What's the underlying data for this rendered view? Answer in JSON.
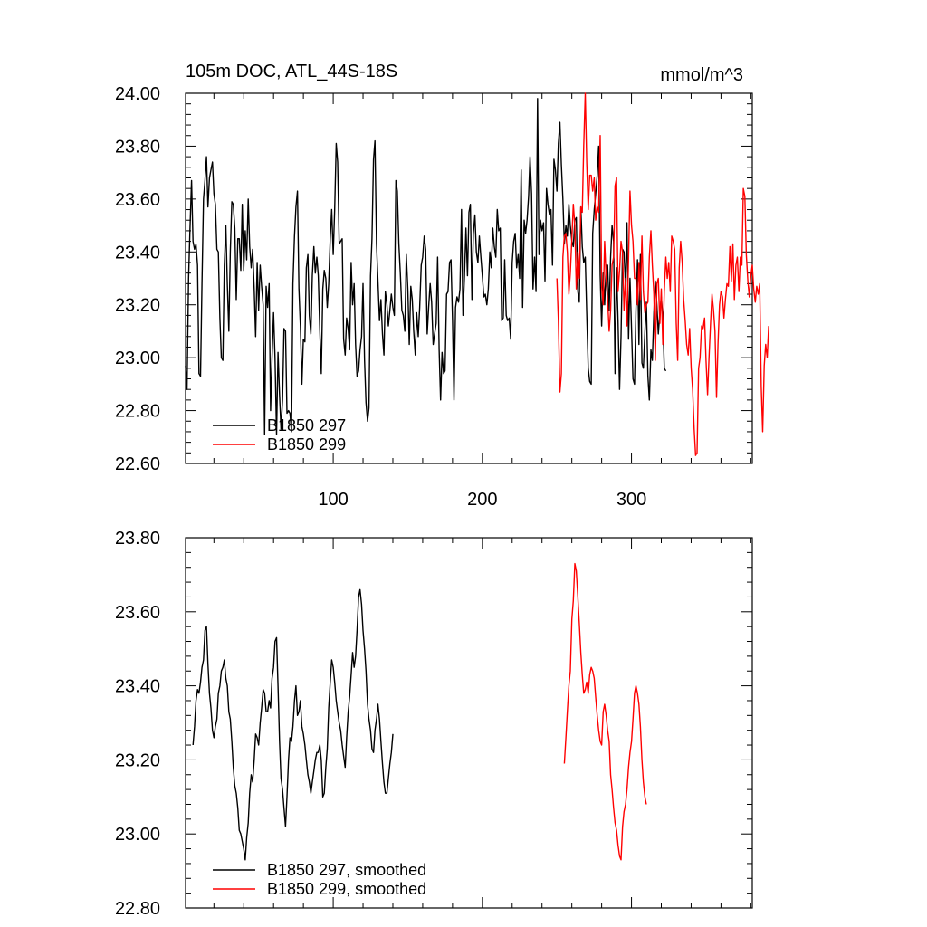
{
  "chart_data": [
    {
      "type": "line",
      "title": "105m DOC, ATL_44S-18S",
      "units": "mmol/m^3",
      "xlim": [
        1,
        381
      ],
      "ylim": [
        22.6,
        24.0
      ],
      "xticks": [
        100,
        200,
        300
      ],
      "yticks": [
        "22.60",
        "22.80",
        "23.00",
        "23.20",
        "23.40",
        "23.60",
        "23.80",
        "24.00"
      ],
      "legend_position": "bottom-left",
      "series": [
        {
          "name": "B1850 297",
          "color": "#000000",
          "x_start": 1,
          "values": [
            22.97,
            22.88,
            23.3,
            23.49,
            23.67,
            23.44,
            23.41,
            23.43,
            23.35,
            22.94,
            22.93,
            23.28,
            23.6,
            23.67,
            23.76,
            23.57,
            23.68,
            23.71,
            23.74,
            23.62,
            23.58,
            23.41,
            23.4,
            23.15,
            23.0,
            22.99,
            23.35,
            23.5,
            23.28,
            23.1,
            23.4,
            23.59,
            23.58,
            23.49,
            23.22,
            23.45,
            23.45,
            23.33,
            23.58,
            23.33,
            23.48,
            23.37,
            23.6,
            23.42,
            23.34,
            23.41,
            23.26,
            23.08,
            23.36,
            23.18,
            23.35,
            23.27,
            23.2,
            22.71,
            23.27,
            23.19,
            23.28,
            22.8,
            23.0,
            23.17,
            23.0,
            22.71,
            23.02,
            22.86,
            22.73,
            22.84,
            23.11,
            23.1,
            22.79,
            22.8,
            22.79,
            22.72,
            23.28,
            23.46,
            23.57,
            23.63,
            23.26,
            23.12,
            22.9,
            23.07,
            23.06,
            23.34,
            23.39,
            23.16,
            23.09,
            23.31,
            23.42,
            23.32,
            23.38,
            23.31,
            23.1,
            22.94,
            23.26,
            23.33,
            23.3,
            23.19,
            23.28,
            23.45,
            23.56,
            23.39,
            23.56,
            23.81,
            23.74,
            23.43,
            23.44,
            23.45,
            23.07,
            23.01,
            23.15,
            23.11,
            23.03,
            23.36,
            23.2,
            23.28,
            23.05,
            22.93,
            22.95,
            23.03,
            23.08,
            23.28,
            22.99,
            22.83,
            22.76,
            22.81,
            23.31,
            23.45,
            23.75,
            23.82,
            23.43,
            23.29,
            23.14,
            23.22,
            23.09,
            23.01,
            23.25,
            23.2,
            23.12,
            23.18,
            23.24,
            23.19,
            23.16,
            23.67,
            23.63,
            23.43,
            23.32,
            23.18,
            23.16,
            23.1,
            23.39,
            23.26,
            23.05,
            23.27,
            23.22,
            23.1,
            23.01,
            23.17,
            23.08,
            23.19,
            23.35,
            23.38,
            23.46,
            23.41,
            23.09,
            23.19,
            23.28,
            23.21,
            23.05,
            23.09,
            23.13,
            23.38,
            23.03,
            22.84,
            23.02,
            22.94,
            22.95,
            23.24,
            23.25,
            23.36,
            23.37,
            23.14,
            22.84,
            23.19,
            23.23,
            23.21,
            23.26,
            23.56,
            23.16,
            23.31,
            23.49,
            23.31,
            23.55,
            23.58,
            23.22,
            23.47,
            23.54,
            23.4,
            23.36,
            23.46,
            23.38,
            23.31,
            23.23,
            23.24,
            23.2,
            23.26,
            23.4,
            23.34,
            23.49,
            23.42,
            23.38,
            23.56,
            23.48,
            23.49,
            23.14,
            23.15,
            23.37,
            23.16,
            23.14,
            23.15,
            23.07,
            23.36,
            23.44,
            23.47,
            23.34,
            23.39,
            23.3,
            23.71,
            23.19,
            23.52,
            23.47,
            23.52,
            23.61,
            23.76,
            23.62,
            23.26,
            23.38,
            23.25,
            23.98,
            23.39,
            23.52,
            23.48,
            23.51,
            23.29,
            23.64,
            23.58,
            23.54,
            23.56,
            23.35,
            23.75,
            23.71,
            23.63,
            23.81,
            23.89,
            23.73,
            23.6,
            23.43,
            23.5,
            23.46,
            23.58,
            23.5,
            23.44,
            23.42,
            23.52,
            23.53,
            23.25,
            23.21,
            23.57,
            23.42,
            23.36,
            23.38,
            23.17,
            22.96,
            22.91,
            22.9,
            23.47,
            23.56,
            23.62,
            23.69,
            23.8,
            23.31,
            23.12,
            23.32,
            23.2,
            23.35,
            23.35,
            23.18,
            23.38,
            23.5,
            23.44,
            22.94,
            23.34,
            23.14,
            22.88,
            23.08,
            23.41,
            23.4,
            23.27,
            23.51,
            23.07,
            23.3,
            23.11,
            22.92,
            22.9,
            23.18,
            23.37,
            23.05,
            23.39,
            22.98,
            22.96,
            23.1,
            23.21,
            22.93,
            22.84,
            23.03,
            22.99,
            23.17,
            23.29,
            23.2,
            23.09,
            23.17,
            23.23,
            23.15,
            22.96,
            22.95
          ]
        },
        {
          "name": "B1850 299",
          "color": "#ff0000",
          "x_start": 250,
          "values": [
            23.3,
            23.14,
            22.87,
            22.94,
            23.38,
            23.46,
            23.47,
            23.4,
            23.24,
            23.32,
            23.45,
            23.58,
            23.5,
            23.26,
            23.4,
            23.3,
            23.57,
            23.55,
            23.8,
            24.0,
            23.74,
            23.56,
            23.69,
            23.69,
            23.63,
            23.68,
            23.52,
            23.57,
            23.55,
            23.84,
            23.27,
            23.2,
            23.44,
            23.3,
            23.22,
            23.1,
            23.18,
            23.35,
            23.38,
            23.65,
            23.68,
            23.25,
            23.33,
            23.44,
            23.4,
            23.18,
            23.3,
            23.12,
            23.37,
            23.63,
            23.5,
            23.44,
            23.3,
            23.3,
            23.2,
            23.36,
            23.22,
            23.46,
            23.25,
            23.17,
            23.2,
            23.21,
            23.38,
            23.48,
            23.35,
            23.24,
            22.99,
            23.28,
            23.3,
            23.13,
            23.26,
            23.05,
            23.25,
            23.38,
            23.3,
            23.36,
            23.25,
            23.46,
            23.44,
            23.41,
            23.13,
            22.99,
            23.34,
            23.44,
            23.36,
            23.22,
            23.14,
            23.05,
            23.01,
            23.11,
            22.96,
            22.88,
            22.73,
            22.63,
            22.64,
            22.96,
            23.0,
            23.12,
            23.11,
            23.15,
            22.99,
            22.86,
            23.0,
            23.13,
            23.24,
            23.18,
            23.1,
            22.85,
            23.05,
            23.2,
            23.25,
            23.23,
            23.15,
            23.22,
            23.28,
            23.27,
            23.42,
            23.29,
            23.43,
            23.22,
            23.35,
            23.38,
            23.25,
            23.38,
            23.35,
            23.64,
            23.61,
            23.39,
            23.29,
            23.23,
            23.31,
            23.35,
            23.26,
            23.21,
            23.27,
            23.24,
            23.28,
            22.89,
            22.72,
            22.97,
            23.05,
            23.0,
            23.12
          ]
        }
      ]
    },
    {
      "type": "line",
      "title": "",
      "xlim": [
        1,
        381
      ],
      "ylim": [
        22.8,
        23.8
      ],
      "yticks": [
        "22.80",
        "23.00",
        "23.20",
        "23.40",
        "23.60",
        "23.80"
      ],
      "legend_position": "bottom-left",
      "series": [
        {
          "name": "B1850 297, smoothed",
          "color": "#000000",
          "x_start": 6,
          "values": [
            23.24,
            23.29,
            23.36,
            23.39,
            23.38,
            23.41,
            23.45,
            23.47,
            23.55,
            23.56,
            23.46,
            23.38,
            23.34,
            23.28,
            23.26,
            23.29,
            23.31,
            23.38,
            23.4,
            23.44,
            23.45,
            23.47,
            23.42,
            23.4,
            23.33,
            23.31,
            23.25,
            23.18,
            23.13,
            23.11,
            23.07,
            23.01,
            23.0,
            22.98,
            22.96,
            22.93,
            22.99,
            23.03,
            23.11,
            23.16,
            23.14,
            23.2,
            23.27,
            23.26,
            23.24,
            23.3,
            23.34,
            23.39,
            23.38,
            23.33,
            23.33,
            23.36,
            23.34,
            23.42,
            23.45,
            23.52,
            23.53,
            23.4,
            23.25,
            23.15,
            23.12,
            23.07,
            23.02,
            23.1,
            23.2,
            23.26,
            23.25,
            23.29,
            23.36,
            23.4,
            23.32,
            23.33,
            23.36,
            23.29,
            23.27,
            23.24,
            23.2,
            23.16,
            23.14,
            23.11,
            23.14,
            23.17,
            23.2,
            23.22,
            23.22,
            23.24,
            23.2,
            23.1,
            23.11,
            23.18,
            23.23,
            23.34,
            23.41,
            23.47,
            23.45,
            23.41,
            23.36,
            23.33,
            23.3,
            23.28,
            23.24,
            23.21,
            23.18,
            23.26,
            23.33,
            23.37,
            23.43,
            23.49,
            23.45,
            23.48,
            23.55,
            23.64,
            23.66,
            23.62,
            23.55,
            23.5,
            23.44,
            23.35,
            23.31,
            23.28,
            23.23,
            23.22,
            23.28,
            23.31,
            23.35,
            23.31,
            23.25,
            23.19,
            23.14,
            23.11,
            23.11,
            23.15,
            23.19,
            23.22,
            23.27
          ]
        },
        {
          "name": "B1850 299, smoothed",
          "color": "#ff0000",
          "x_start": 255,
          "values": [
            23.19,
            23.26,
            23.33,
            23.4,
            23.44,
            23.58,
            23.63,
            23.73,
            23.71,
            23.64,
            23.57,
            23.49,
            23.43,
            23.38,
            23.39,
            23.41,
            23.38,
            23.43,
            23.45,
            23.44,
            23.42,
            23.37,
            23.32,
            23.28,
            23.25,
            23.24,
            23.33,
            23.35,
            23.32,
            23.28,
            23.25,
            23.16,
            23.12,
            23.07,
            23.03,
            23.01,
            22.97,
            22.94,
            22.93,
            23.02,
            23.06,
            23.08,
            23.12,
            23.18,
            23.22,
            23.25,
            23.31,
            23.38,
            23.4,
            23.38,
            23.35,
            23.29,
            23.2,
            23.14,
            23.1,
            23.08
          ]
        }
      ]
    }
  ]
}
